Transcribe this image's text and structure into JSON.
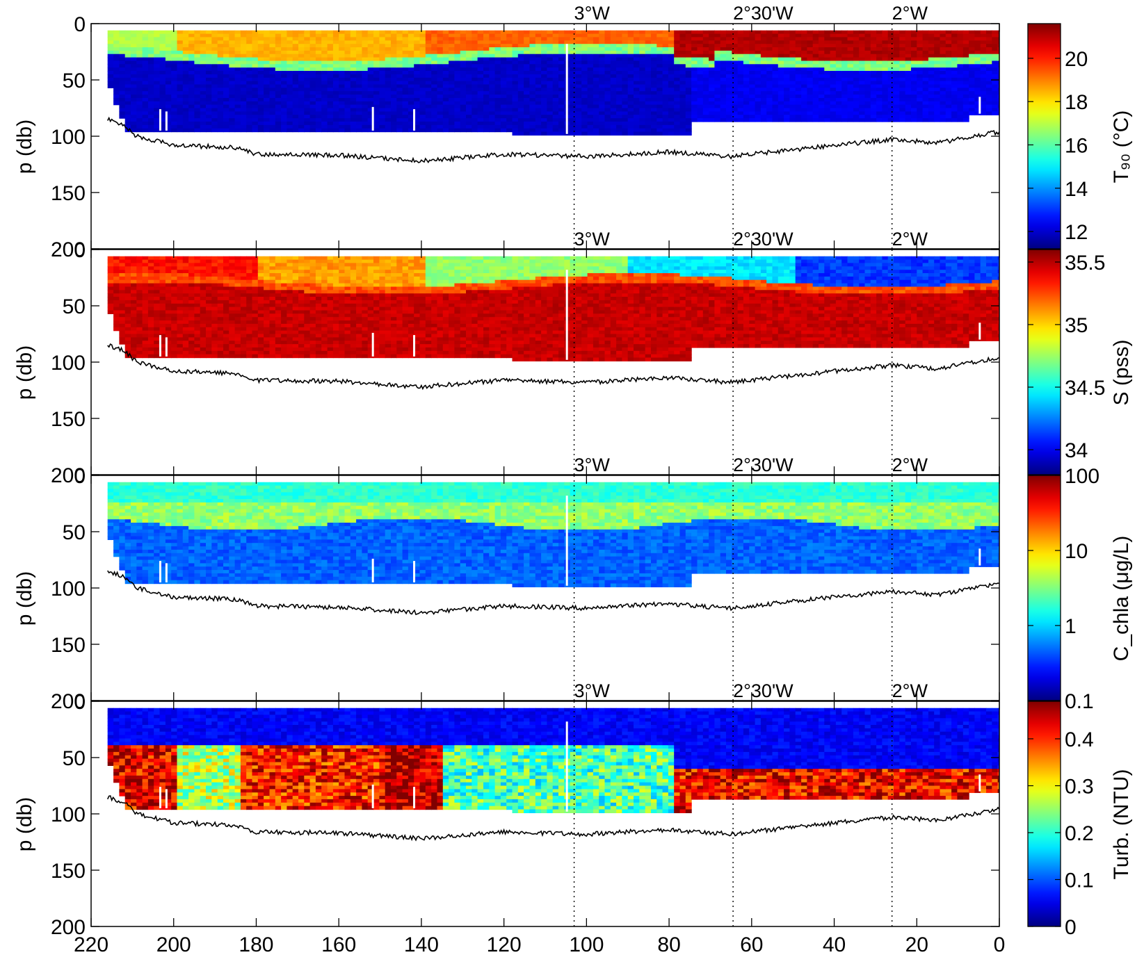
{
  "chart_data": [
    {
      "type": "heatmap",
      "title": "",
      "xlabel": "",
      "ylabel": "p (db)",
      "xlim": [
        220,
        0
      ],
      "ylim": [
        0,
        200
      ],
      "y_reversed": true,
      "yticks": [
        0,
        50,
        100,
        150,
        200
      ],
      "longitude_markers": [
        {
          "x": 103,
          "label": "3°W"
        },
        {
          "x": 64.5,
          "label": "2°30'W"
        },
        {
          "x": 26,
          "label": "2°W"
        }
      ],
      "colorbar": {
        "label": "T₉₀ (°C)",
        "min": 11.2,
        "max": 21.6,
        "ticks": [
          12,
          14,
          16,
          18,
          20
        ],
        "scale": "linear",
        "colormap": "jet"
      },
      "layers": [
        {
          "depth": [
            5,
            30
          ],
          "value_east_end": 20.5,
          "value_west_end": 17.5,
          "description_of_pattern": "warm surface mixed layer"
        },
        {
          "depth": [
            30,
            95
          ],
          "value": 12.0
        }
      ],
      "bottom_depth_line": [
        [
          216,
          85
        ],
        [
          212,
          90
        ],
        [
          209,
          100
        ],
        [
          200,
          108
        ],
        [
          185,
          110
        ],
        [
          180,
          116
        ],
        [
          160,
          117
        ],
        [
          140,
          122
        ],
        [
          120,
          116
        ],
        [
          100,
          118
        ],
        [
          80,
          114
        ],
        [
          65,
          118
        ],
        [
          50,
          112
        ],
        [
          40,
          108
        ],
        [
          26,
          103
        ],
        [
          15,
          106
        ],
        [
          0,
          96
        ]
      ]
    },
    {
      "type": "heatmap",
      "title": "",
      "xlabel": "",
      "ylabel": "p (db)",
      "xlim": [
        220,
        0
      ],
      "ylim": [
        0,
        200
      ],
      "y_reversed": true,
      "yticks": [
        0,
        50,
        100,
        150,
        200
      ],
      "longitude_markers": [
        {
          "x": 103,
          "label": "3°W"
        },
        {
          "x": 64.5,
          "label": "2°30'W"
        },
        {
          "x": 26,
          "label": "2°W"
        }
      ],
      "colorbar": {
        "label": "S (pss)",
        "min": 33.8,
        "max": 35.6,
        "ticks": [
          34,
          34.5,
          35,
          35.5
        ],
        "scale": "linear",
        "colormap": "jet"
      },
      "layers": [
        {
          "depth": [
            5,
            30
          ],
          "value_west_end": 35.4,
          "value_east_end": 34.1
        },
        {
          "depth": [
            30,
            95
          ],
          "value": 35.55
        }
      ]
    },
    {
      "type": "heatmap",
      "title": "",
      "xlabel": "",
      "ylabel": "p (db)",
      "xlim": [
        220,
        0
      ],
      "ylim": [
        0,
        200
      ],
      "y_reversed": true,
      "yticks": [
        0,
        50,
        100,
        150,
        200
      ],
      "longitude_markers": [
        {
          "x": 103,
          "label": "3°W"
        },
        {
          "x": 64.5,
          "label": "2°30'W"
        },
        {
          "x": 26,
          "label": "2°W"
        }
      ],
      "colorbar": {
        "label": "C_chla (μg/L)",
        "min": 0.1,
        "max": 100,
        "ticks": [
          0.1,
          1,
          10,
          100
        ],
        "tick_labels": [
          "0.1",
          "1",
          "10",
          "100"
        ],
        "scale": "log",
        "colormap": "jet"
      },
      "layers": [
        {
          "depth": [
            5,
            25
          ],
          "value": 0.6
        },
        {
          "depth": [
            25,
            45
          ],
          "value": 1.0
        },
        {
          "depth": [
            45,
            95
          ],
          "value": 0.3
        }
      ]
    },
    {
      "type": "heatmap",
      "title": "",
      "xlabel": "",
      "ylabel": "p (db)",
      "xlim": [
        220,
        0
      ],
      "ylim": [
        0,
        200
      ],
      "y_reversed": true,
      "yticks": [
        0,
        50,
        100,
        150,
        200
      ],
      "xticks": [
        220,
        200,
        180,
        160,
        140,
        120,
        100,
        80,
        60,
        40,
        20,
        0
      ],
      "longitude_markers": [
        {
          "x": 103,
          "label": "3°W"
        },
        {
          "x": 64.5,
          "label": "2°30'W"
        },
        {
          "x": 26,
          "label": "2°W"
        }
      ],
      "colorbar": {
        "label": "Turb. (NTU)",
        "min": 0,
        "max": 0.48,
        "ticks": [
          0,
          0.1,
          0.2,
          0.3,
          0.4
        ],
        "scale": "linear",
        "colormap": "jet"
      },
      "layers": [
        {
          "depth": [
            5,
            40
          ],
          "value": 0.05
        },
        {
          "depth": [
            40,
            95
          ],
          "value_west_end": 0.4,
          "value_middle": 0.22,
          "value_east_end": 0.38
        }
      ]
    }
  ]
}
